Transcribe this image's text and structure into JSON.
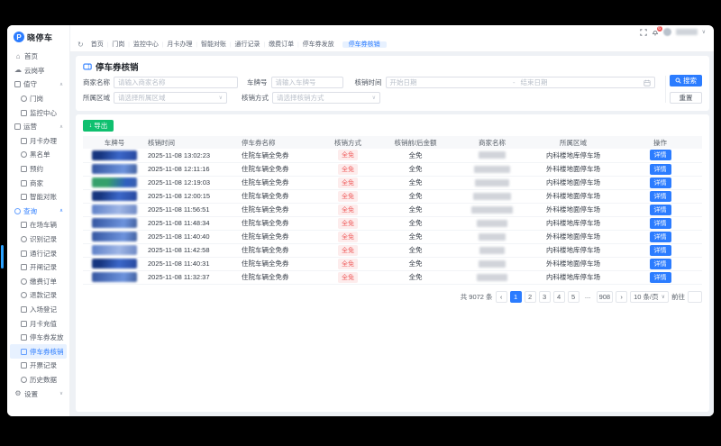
{
  "brand": {
    "name": "晓停车",
    "logo_letter": "P"
  },
  "titlebar": {
    "notification_badge": "6"
  },
  "topnav": {
    "tabs": [
      "首页",
      "门岗",
      "监控中心",
      "月卡办理",
      "智能对账",
      "通行记录",
      "缴费订单",
      "停车券发放"
    ],
    "active_tab": "停车券核销"
  },
  "sidebar": {
    "items": [
      {
        "label": "首页",
        "icon": "home",
        "shape": "home",
        "indent": 0
      },
      {
        "label": "云岗亭",
        "icon": "cloud-booth",
        "shape": "cloud",
        "indent": 0
      },
      {
        "label": "值守",
        "icon": "duty",
        "shape": "square",
        "indent": 0,
        "group": true,
        "expanded": true
      },
      {
        "label": "门岗",
        "icon": "gate",
        "shape": "circle",
        "indent": 1
      },
      {
        "label": "监控中心",
        "icon": "monitor-center",
        "shape": "square",
        "indent": 1
      },
      {
        "label": "运营",
        "icon": "operation",
        "shape": "square",
        "indent": 0,
        "group": true,
        "expanded": true
      },
      {
        "label": "月卡办理",
        "icon": "month-card",
        "shape": "square",
        "indent": 1
      },
      {
        "label": "黑名单",
        "icon": "blacklist",
        "shape": "circle",
        "indent": 1
      },
      {
        "label": "预约",
        "icon": "booking",
        "shape": "square",
        "indent": 1
      },
      {
        "label": "商家",
        "icon": "merchant",
        "shape": "square",
        "indent": 1
      },
      {
        "label": "智能对账",
        "icon": "smart-audit",
        "shape": "square",
        "indent": 1
      },
      {
        "label": "查询",
        "icon": "query",
        "shape": "circle",
        "indent": 0,
        "group": true,
        "expanded": true,
        "highlighted": true
      },
      {
        "label": "在场车辆",
        "icon": "onsite-vehicle",
        "shape": "square",
        "indent": 1
      },
      {
        "label": "识别记录",
        "icon": "recognition-log",
        "shape": "circle",
        "indent": 1
      },
      {
        "label": "通行记录",
        "icon": "pass-log",
        "shape": "square",
        "indent": 1
      },
      {
        "label": "开闸记录",
        "icon": "gate-open-log",
        "shape": "square",
        "indent": 1
      },
      {
        "label": "缴费订单",
        "icon": "payment-order",
        "shape": "circle",
        "indent": 1
      },
      {
        "label": "退款记录",
        "icon": "refund-log",
        "shape": "circle",
        "indent": 1
      },
      {
        "label": "入场登记",
        "icon": "entry-register",
        "shape": "square",
        "indent": 1
      },
      {
        "label": "月卡充值",
        "icon": "card-recharge",
        "shape": "square",
        "indent": 1
      },
      {
        "label": "停车券发放",
        "icon": "ticket-issue",
        "shape": "square",
        "indent": 1
      },
      {
        "label": "停车券核销",
        "icon": "ticket-verify",
        "shape": "square",
        "indent": 1,
        "active": true
      },
      {
        "label": "开票记录",
        "icon": "invoice-log",
        "shape": "square",
        "indent": 1
      },
      {
        "label": "历史数据",
        "icon": "history-data",
        "shape": "circle",
        "indent": 1
      },
      {
        "label": "设置",
        "icon": "settings",
        "shape": "gear",
        "indent": 0,
        "group": true,
        "expanded": false
      }
    ]
  },
  "page": {
    "title": "停车券核销",
    "filters": {
      "merchant_label": "商家名称",
      "merchant_placeholder": "请输入商家名称",
      "plate_label": "车牌号",
      "plate_placeholder": "请输入车牌号",
      "time_label": "核销时间",
      "start_placeholder": "开始日期",
      "range_separator": "-",
      "end_placeholder": "结束日期",
      "area_label": "所属区域",
      "area_placeholder": "请选择所属区域",
      "method_label": "核销方式",
      "method_placeholder": "请选择核销方式"
    },
    "actions": {
      "search": "搜索",
      "reset": "重置",
      "export": "导出"
    },
    "table": {
      "columns": [
        "车牌号",
        "核销时间",
        "停车券名称",
        "核销方式",
        "核销前/后金额",
        "商家名称",
        "所属区域",
        "操作"
      ],
      "rows": [
        {
          "plate": "a",
          "time": "2025-11-08 13:02:23",
          "voucher": "住院车辆全免券",
          "method": "全免",
          "amount": "全免",
          "area": "内科楼地库停车场",
          "action": "详情",
          "blob": 30
        },
        {
          "plate": "b",
          "time": "2025-11-08 12:11:16",
          "voucher": "住院车辆全免券",
          "method": "全免",
          "amount": "全免",
          "area": "外科楼地面停车场",
          "action": "详情",
          "blob": 40
        },
        {
          "plate": "c",
          "time": "2025-11-08 12:19:03",
          "voucher": "住院车辆全免券",
          "method": "全免",
          "amount": "全免",
          "area": "内科楼地面停车场",
          "action": "详情",
          "blob": 38
        },
        {
          "plate": "a",
          "time": "2025-11-08 12:00:15",
          "voucher": "住院车辆全免券",
          "method": "全免",
          "amount": "全免",
          "area": "外科楼地面停车场",
          "action": "详情",
          "blob": 42
        },
        {
          "plate": "d",
          "time": "2025-11-08 11:56:51",
          "voucher": "住院车辆全免券",
          "method": "全免",
          "amount": "全免",
          "area": "外科楼地面停车场",
          "action": "详情",
          "blob": 46
        },
        {
          "plate": "b",
          "time": "2025-11-08 11:48:34",
          "voucher": "住院车辆全免券",
          "method": "全免",
          "amount": "全免",
          "area": "内科楼地库停车场",
          "action": "详情",
          "blob": 34
        },
        {
          "plate": "b",
          "time": "2025-11-08 11:40:40",
          "voucher": "住院车辆全免券",
          "method": "全免",
          "amount": "全免",
          "area": "外科楼地面停车场",
          "action": "详情",
          "blob": 30
        },
        {
          "plate": "d",
          "time": "2025-11-08 11:42:58",
          "voucher": "住院车辆全免券",
          "method": "全免",
          "amount": "全免",
          "area": "内科楼地库停车场",
          "action": "详情",
          "blob": 28
        },
        {
          "plate": "a",
          "time": "2025-11-08 11:40:31",
          "voucher": "住院车辆全免券",
          "method": "全免",
          "amount": "全免",
          "area": "外科楼地面停车场",
          "action": "详情",
          "blob": 30
        },
        {
          "plate": "b",
          "time": "2025-11-08 11:32:37",
          "voucher": "住院车辆全免券",
          "method": "全免",
          "amount": "全免",
          "area": "内科楼地库停车场",
          "action": "详情",
          "blob": 34
        }
      ]
    },
    "pagination": {
      "total": "共 9072 条",
      "prev": "‹",
      "next": "›",
      "pages": [
        "1",
        "2",
        "3",
        "4",
        "5",
        "...",
        "908"
      ],
      "active_page": "1",
      "page_size": "10 条/页",
      "goto_label": "前往"
    }
  }
}
